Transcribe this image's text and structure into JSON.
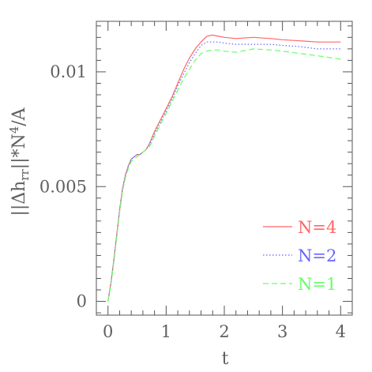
{
  "chart_data": {
    "type": "line",
    "xlabel": "t",
    "ylabel": "||Δh_rr||*N^4/A",
    "xlim": [
      -0.2,
      4.2
    ],
    "ylim": [
      -0.0006,
      0.0122
    ],
    "xticks": [
      0,
      1,
      2,
      3,
      4
    ],
    "xtick_labels": [
      "0",
      "1",
      "2",
      "3",
      "4"
    ],
    "yticks": [
      0,
      0.005,
      0.01
    ],
    "ytick_labels": [
      "0",
      "0.005",
      "0.01"
    ],
    "grid": false,
    "legend_position": "bottom-right",
    "series": [
      {
        "name": "N=4",
        "color": "#ff6666",
        "dash": "solid",
        "x": [
          0,
          0.05,
          0.1,
          0.15,
          0.2,
          0.25,
          0.3,
          0.35,
          0.4,
          0.45,
          0.5,
          0.55,
          0.6,
          0.65,
          0.7,
          0.75,
          0.8,
          0.9,
          1.0,
          1.1,
          1.2,
          1.3,
          1.4,
          1.5,
          1.6,
          1.7,
          1.8,
          1.9,
          2.0,
          2.2,
          2.5,
          2.8,
          3.0,
          3.3,
          3.6,
          4.0
        ],
        "y": [
          0,
          0.0008,
          0.0018,
          0.0029,
          0.004,
          0.0049,
          0.0055,
          0.0059,
          0.0062,
          0.0063,
          0.0064,
          0.0064,
          0.0065,
          0.0066,
          0.0068,
          0.0071,
          0.0074,
          0.0079,
          0.0084,
          0.0089,
          0.0095,
          0.0101,
          0.0106,
          0.011,
          0.0113,
          0.01155,
          0.0116,
          0.01155,
          0.0115,
          0.01145,
          0.0115,
          0.01145,
          0.0114,
          0.01135,
          0.0113,
          0.0113
        ]
      },
      {
        "name": "N=2",
        "color": "#6666ff",
        "dash": "dotted",
        "x": [
          0,
          0.05,
          0.1,
          0.15,
          0.2,
          0.25,
          0.3,
          0.35,
          0.4,
          0.45,
          0.5,
          0.55,
          0.6,
          0.65,
          0.7,
          0.75,
          0.8,
          0.9,
          1.0,
          1.1,
          1.2,
          1.3,
          1.4,
          1.5,
          1.6,
          1.7,
          1.8,
          1.9,
          2.0,
          2.2,
          2.5,
          2.8,
          3.0,
          3.3,
          3.6,
          4.0
        ],
        "y": [
          0,
          0.0008,
          0.0018,
          0.0029,
          0.004,
          0.0049,
          0.0055,
          0.0059,
          0.0062,
          0.0063,
          0.0064,
          0.0064,
          0.0065,
          0.0066,
          0.0068,
          0.007,
          0.0073,
          0.0078,
          0.0083,
          0.0088,
          0.0094,
          0.0099,
          0.0104,
          0.0108,
          0.01115,
          0.0113,
          0.0113,
          0.0113,
          0.01125,
          0.0112,
          0.0112,
          0.0112,
          0.01115,
          0.0111,
          0.011,
          0.011
        ]
      },
      {
        "name": "N=1",
        "color": "#66ff66",
        "dash": "dashed",
        "x": [
          0,
          0.05,
          0.1,
          0.15,
          0.2,
          0.25,
          0.3,
          0.35,
          0.4,
          0.45,
          0.5,
          0.55,
          0.6,
          0.65,
          0.7,
          0.75,
          0.8,
          0.9,
          1.0,
          1.1,
          1.2,
          1.3,
          1.4,
          1.5,
          1.6,
          1.7,
          1.8,
          1.9,
          2.0,
          2.2,
          2.5,
          2.8,
          3.0,
          3.3,
          3.6,
          4.0
        ],
        "y": [
          0,
          0.0007,
          0.0017,
          0.0028,
          0.0039,
          0.0048,
          0.0054,
          0.0058,
          0.0061,
          0.0062,
          0.0063,
          0.0064,
          0.0065,
          0.0066,
          0.0067,
          0.0069,
          0.0072,
          0.0077,
          0.0082,
          0.0087,
          0.0092,
          0.0097,
          0.0101,
          0.0105,
          0.0108,
          0.0109,
          0.01095,
          0.01095,
          0.0109,
          0.01085,
          0.011,
          0.01095,
          0.0109,
          0.0108,
          0.0107,
          0.01055
        ]
      }
    ]
  }
}
